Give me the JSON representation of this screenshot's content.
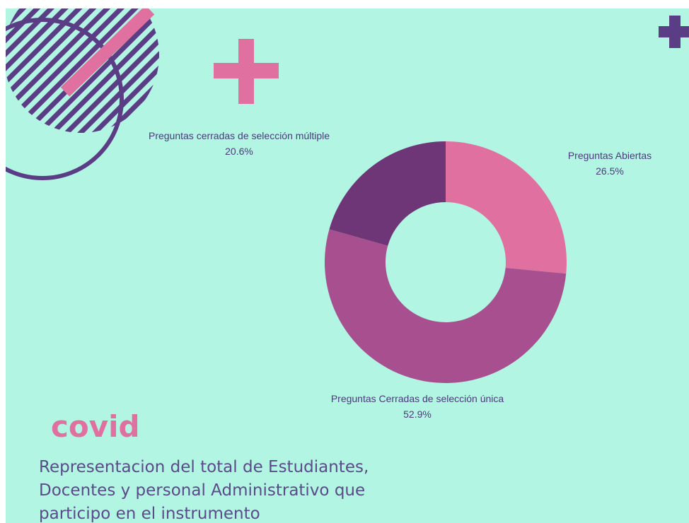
{
  "chart_data": {
    "type": "pie",
    "donut": true,
    "categories": [
      "Preguntas Abiertas",
      "Preguntas Cerradas de selección única",
      "Preguntas cerradas de selección múltiple"
    ],
    "values": [
      26.5,
      52.9,
      20.6
    ],
    "value_labels": [
      "26.5%",
      "52.9%",
      "20.6%"
    ],
    "colors": [
      "#e070a0",
      "#a8508f",
      "#6e3577"
    ]
  },
  "heading": "covid",
  "description": [
    "Representacion del total de Estudiantes,",
    "Docentes y personal Administrativo que",
    "participo en el instrumento"
  ]
}
